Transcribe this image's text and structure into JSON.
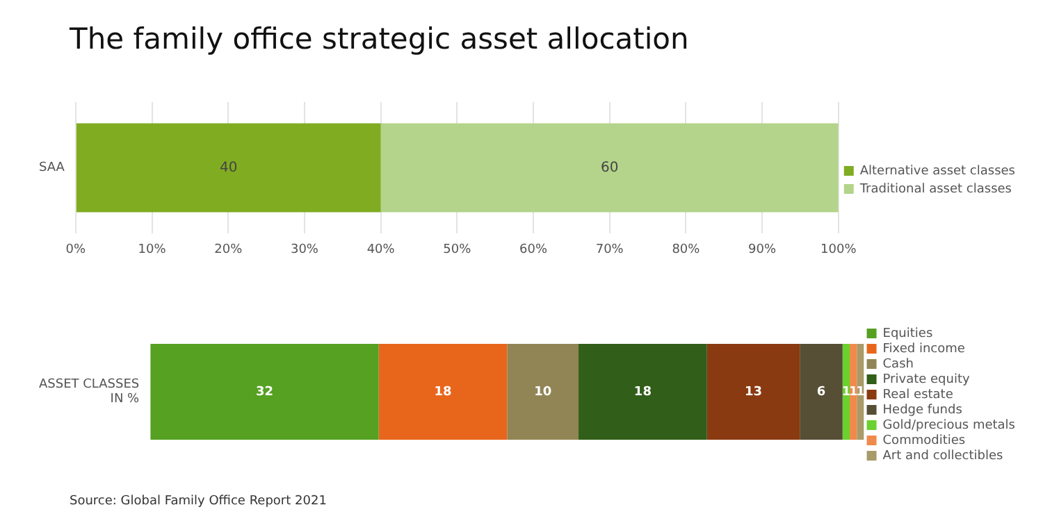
{
  "chart_data": [
    {
      "type": "bar",
      "title": "The family office strategic asset allocation",
      "orientation": "horizontal",
      "stacked": true,
      "categories": [
        "SAA"
      ],
      "series": [
        {
          "name": "Alternative asset classes",
          "color": "#80ac22",
          "values": [
            40
          ]
        },
        {
          "name": "Traditional asset classes",
          "color": "#b3d48a",
          "values": [
            60
          ]
        }
      ],
      "xlim": [
        0,
        100
      ],
      "xticks": [
        {
          "value": 0,
          "label": "0%"
        },
        {
          "value": 10,
          "label": "10%"
        },
        {
          "value": 20,
          "label": "20%"
        },
        {
          "value": 30,
          "label": "30%"
        },
        {
          "value": 40,
          "label": "40%"
        },
        {
          "value": 50,
          "label": "50%"
        },
        {
          "value": 60,
          "label": "60%"
        },
        {
          "value": 70,
          "label": "70%"
        },
        {
          "value": 80,
          "label": "80%"
        },
        {
          "value": 90,
          "label": "90%"
        },
        {
          "value": 100,
          "label": "100%"
        }
      ],
      "grid": "x",
      "legend": "right",
      "data_labels": true
    },
    {
      "type": "bar",
      "orientation": "horizontal",
      "stacked": true,
      "categories": [
        "ASSET CLASSES IN %"
      ],
      "series": [
        {
          "name": "Equities",
          "color": "#56a022",
          "values": [
            32
          ]
        },
        {
          "name": "Fixed income",
          "color": "#e8661b",
          "values": [
            18
          ]
        },
        {
          "name": "Cash",
          "color": "#918556",
          "values": [
            10
          ]
        },
        {
          "name": "Private equity",
          "color": "#315e19",
          "values": [
            18
          ]
        },
        {
          "name": "Real estate",
          "color": "#8a3a10",
          "values": [
            13
          ]
        },
        {
          "name": "Hedge funds",
          "color": "#564e35",
          "values": [
            6
          ]
        },
        {
          "name": "Gold/precious metals",
          "color": "#6ad12e",
          "values": [
            1
          ]
        },
        {
          "name": "Commodities",
          "color": "#f08a4b",
          "values": [
            1
          ]
        },
        {
          "name": "Art and collectibles",
          "color": "#a89b6a",
          "values": [
            1
          ]
        }
      ],
      "tick_labels": "y",
      "legend": "right",
      "data_labels": true,
      "annotations": [
        "Source: Global Family Office Report 2021"
      ]
    }
  ]
}
